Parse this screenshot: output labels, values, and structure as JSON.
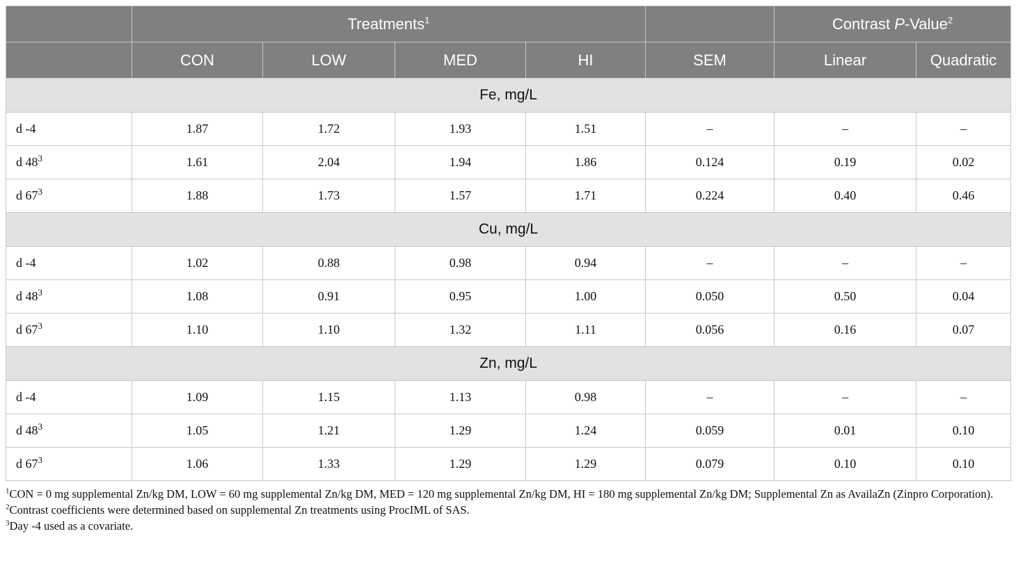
{
  "header": {
    "treatments_label": "Treatments",
    "treatments_sup": "1",
    "contrast_label_pre": "Contrast ",
    "contrast_label_italic": "P",
    "contrast_label_post": "-Value",
    "contrast_sup": "2",
    "columns": [
      "CON",
      "LOW",
      "MED",
      "HI",
      "SEM",
      "Linear",
      "Quadratic"
    ]
  },
  "sections": [
    {
      "title": "Fe, mg/L",
      "rows": [
        {
          "label": "d -4",
          "sup": "",
          "values": [
            "1.87",
            "1.72",
            "1.93",
            "1.51",
            "–",
            "–",
            "–"
          ]
        },
        {
          "label": "d 48",
          "sup": "3",
          "values": [
            "1.61",
            "2.04",
            "1.94",
            "1.86",
            "0.124",
            "0.19",
            "0.02"
          ]
        },
        {
          "label": "d 67",
          "sup": "3",
          "values": [
            "1.88",
            "1.73",
            "1.57",
            "1.71",
            "0.224",
            "0.40",
            "0.46"
          ]
        }
      ]
    },
    {
      "title": "Cu, mg/L",
      "rows": [
        {
          "label": "d -4",
          "sup": "",
          "values": [
            "1.02",
            "0.88",
            "0.98",
            "0.94",
            "–",
            "–",
            "–"
          ]
        },
        {
          "label": "d 48",
          "sup": "3",
          "values": [
            "1.08",
            "0.91",
            "0.95",
            "1.00",
            "0.050",
            "0.50",
            "0.04"
          ]
        },
        {
          "label": "d 67",
          "sup": "3",
          "values": [
            "1.10",
            "1.10",
            "1.32",
            "1.11",
            "0.056",
            "0.16",
            "0.07"
          ]
        }
      ]
    },
    {
      "title": "Zn, mg/L",
      "rows": [
        {
          "label": "d -4",
          "sup": "",
          "values": [
            "1.09",
            "1.15",
            "1.13",
            "0.98",
            "–",
            "–",
            "–"
          ]
        },
        {
          "label": "d 48",
          "sup": "3",
          "values": [
            "1.05",
            "1.21",
            "1.29",
            "1.24",
            "0.059",
            "0.01",
            "0.10"
          ]
        },
        {
          "label": "d 67",
          "sup": "3",
          "values": [
            "1.06",
            "1.33",
            "1.29",
            "1.29",
            "0.079",
            "0.10",
            "0.10"
          ]
        }
      ]
    }
  ],
  "footnotes": [
    {
      "sup": "1",
      "text": "CON = 0 mg supplemental Zn/kg DM, LOW = 60 mg supplemental Zn/kg DM, MED = 120 mg supplemental Zn/kg DM, HI = 180 mg supplemental Zn/kg DM; Supplemental Zn as AvailaZn (Zinpro Corporation)."
    },
    {
      "sup": "2",
      "text": "Contrast coefficients were determined based on supplemental Zn treatments using ProcIML of SAS."
    },
    {
      "sup": "3",
      "text": "Day -4 used as a covariate."
    }
  ],
  "colors": {
    "header_bg": "#808080",
    "section_bg": "#e2e2e2",
    "border": "#c8c8c8"
  }
}
